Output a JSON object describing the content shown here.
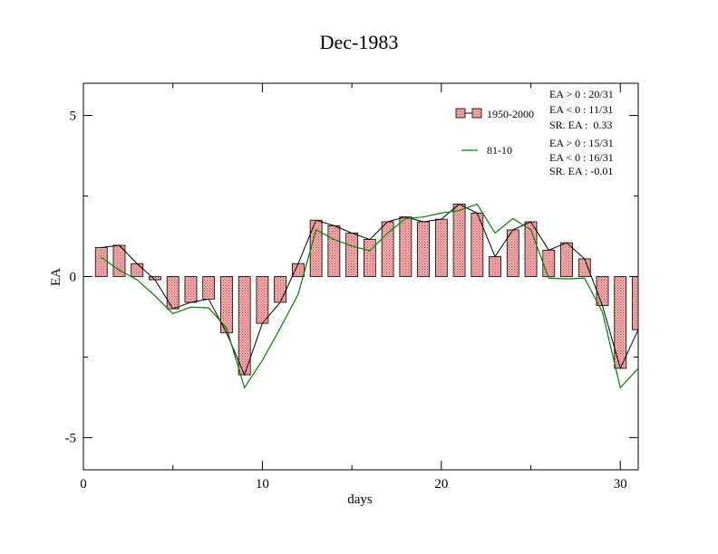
{
  "chart_data": {
    "type": "bar",
    "title": "Dec-1983",
    "xlabel": "days",
    "ylabel": "EA",
    "xlim": [
      0,
      31
    ],
    "ylim": [
      -6,
      6
    ],
    "xticks": [
      0,
      10,
      20,
      30
    ],
    "yticks": [
      -5,
      0,
      5
    ],
    "grid": false,
    "legend_position": "top-right",
    "series": [
      {
        "name": "1950-2000",
        "style": "bar-with-line",
        "bar_color": "#e06060",
        "line_color": "#000000",
        "x": [
          1,
          2,
          3,
          4,
          5,
          6,
          7,
          8,
          9,
          10,
          11,
          12,
          13,
          14,
          15,
          16,
          17,
          18,
          19,
          20,
          21,
          22,
          23,
          24,
          25,
          26,
          27,
          28,
          29,
          30,
          31
        ],
        "values": [
          0.9,
          0.97,
          0.4,
          -0.1,
          -1.0,
          -0.8,
          -0.7,
          -1.75,
          -3.05,
          -1.45,
          -0.8,
          0.4,
          1.75,
          1.58,
          1.35,
          1.15,
          1.7,
          1.85,
          1.7,
          1.78,
          2.25,
          1.97,
          0.62,
          1.45,
          1.7,
          0.82,
          1.05,
          0.55,
          -0.9,
          -2.85,
          -1.65
        ]
      },
      {
        "name": "81-10",
        "style": "line",
        "line_color": "#008000",
        "x": [
          1,
          2,
          3,
          4,
          5,
          6,
          7,
          8,
          9,
          10,
          11,
          12,
          13,
          14,
          15,
          16,
          17,
          18,
          19,
          20,
          21,
          22,
          23,
          24,
          25,
          26,
          27,
          28,
          29,
          30,
          31
        ],
        "values": [
          0.6,
          0.2,
          -0.1,
          -0.6,
          -1.15,
          -0.95,
          -0.97,
          -1.6,
          -3.45,
          -2.6,
          -1.6,
          -0.55,
          1.45,
          1.15,
          0.95,
          0.8,
          1.35,
          1.8,
          1.85,
          1.97,
          2.05,
          2.25,
          1.35,
          1.8,
          1.45,
          -0.05,
          -0.07,
          -0.05,
          -1.1,
          -3.45,
          -2.85
        ]
      }
    ],
    "legend": [
      {
        "label": "1950-2000",
        "stats": [
          "EA > 0 : 20/31",
          "EA < 0 : 11/31",
          "SR. EA :  0.33"
        ]
      },
      {
        "label": "81-10",
        "stats": [
          "EA > 0 : 15/31",
          "EA < 0 : 16/31",
          "SR. EA : -0.01"
        ]
      }
    ]
  }
}
